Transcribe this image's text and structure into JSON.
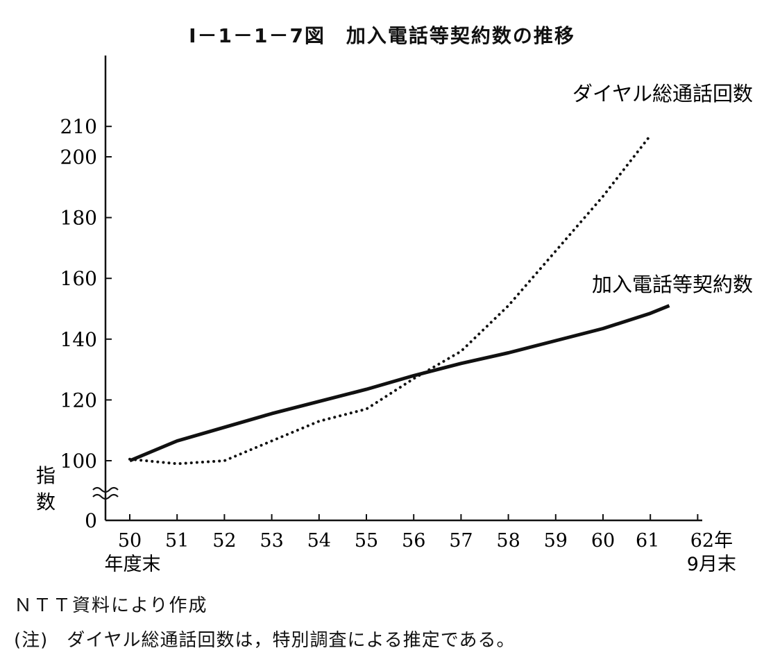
{
  "chart_data": {
    "type": "line",
    "title": "Ⅰ－1－1－7図　加入電話等契約数の推移",
    "ylabel": "指数",
    "ylim": [
      0,
      215
    ],
    "y_ticks": [
      0,
      100,
      120,
      140,
      160,
      180,
      200,
      210
    ],
    "y_axis_break": true,
    "x_ticks": [
      "50",
      "51",
      "52",
      "53",
      "54",
      "55",
      "56",
      "57",
      "58",
      "59",
      "60",
      "61",
      "62年"
    ],
    "x_unit_start": "年度末",
    "x_unit_end": "9月末",
    "grid": false,
    "series": [
      {
        "name": "加入電話等契約数",
        "style": "solid",
        "x": [
          50,
          51,
          52,
          53,
          54,
          55,
          56,
          57,
          58,
          59,
          60,
          61,
          61.4
        ],
        "values": [
          100,
          106.5,
          111,
          115.5,
          119.5,
          123.5,
          128,
          132,
          135.5,
          139.5,
          143.5,
          148.5,
          151
        ]
      },
      {
        "name": "ダイヤル総通話回数",
        "style": "dotted",
        "x": [
          50,
          51,
          52,
          53,
          54,
          55,
          56,
          57,
          58,
          59,
          60,
          61
        ],
        "values": [
          100.5,
          99,
          100,
          106.5,
          113,
          117,
          127,
          136,
          151,
          169,
          187,
          207
        ]
      }
    ]
  },
  "source_note": "ＮＴＴ資料により作成",
  "footnote": "(注)　ダイヤル総通話回数は，特別調査による推定である。"
}
